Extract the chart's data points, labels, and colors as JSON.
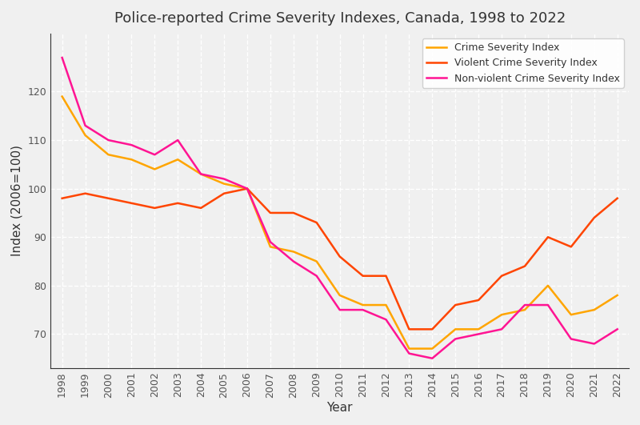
{
  "title": "Police-reported Crime Severity Indexes, Canada, 1998 to 2022",
  "xlabel": "Year",
  "ylabel": "Index (2006=100)",
  "years": [
    1998,
    1999,
    2000,
    2001,
    2002,
    2003,
    2004,
    2005,
    2006,
    2007,
    2008,
    2009,
    2010,
    2011,
    2012,
    2013,
    2014,
    2015,
    2016,
    2017,
    2018,
    2019,
    2020,
    2021,
    2022
  ],
  "csi": [
    119,
    111,
    107,
    106,
    104,
    106,
    103,
    101,
    100,
    88,
    87,
    85,
    78,
    76,
    76,
    67,
    67,
    71,
    71,
    74,
    75,
    80,
    74,
    75,
    78
  ],
  "vcsi": [
    98,
    99,
    98,
    97,
    96,
    97,
    96,
    99,
    100,
    95,
    95,
    93,
    86,
    82,
    82,
    71,
    71,
    76,
    77,
    82,
    84,
    90,
    88,
    94,
    98
  ],
  "nvcsi": [
    127,
    113,
    110,
    109,
    107,
    110,
    103,
    102,
    100,
    89,
    85,
    82,
    75,
    75,
    73,
    66,
    65,
    69,
    70,
    71,
    76,
    76,
    69,
    68,
    71
  ],
  "csi_color": "#FFA500",
  "vcsi_color": "#FF4500",
  "nvcsi_color": "#FF1493",
  "bg_color": "#f0f0f0",
  "plot_bg_color": "#f0f0f0",
  "grid_color": "#ffffff",
  "spine_color": "#333333",
  "text_color": "#333333",
  "tick_color": "#555555",
  "ylim_min": 63,
  "ylim_max": 132,
  "yticks": [
    70,
    80,
    90,
    100,
    110,
    120
  ],
  "legend_loc": "upper right",
  "title_fontsize": 13,
  "label_fontsize": 11,
  "tick_fontsize": 9,
  "linewidth": 1.8
}
